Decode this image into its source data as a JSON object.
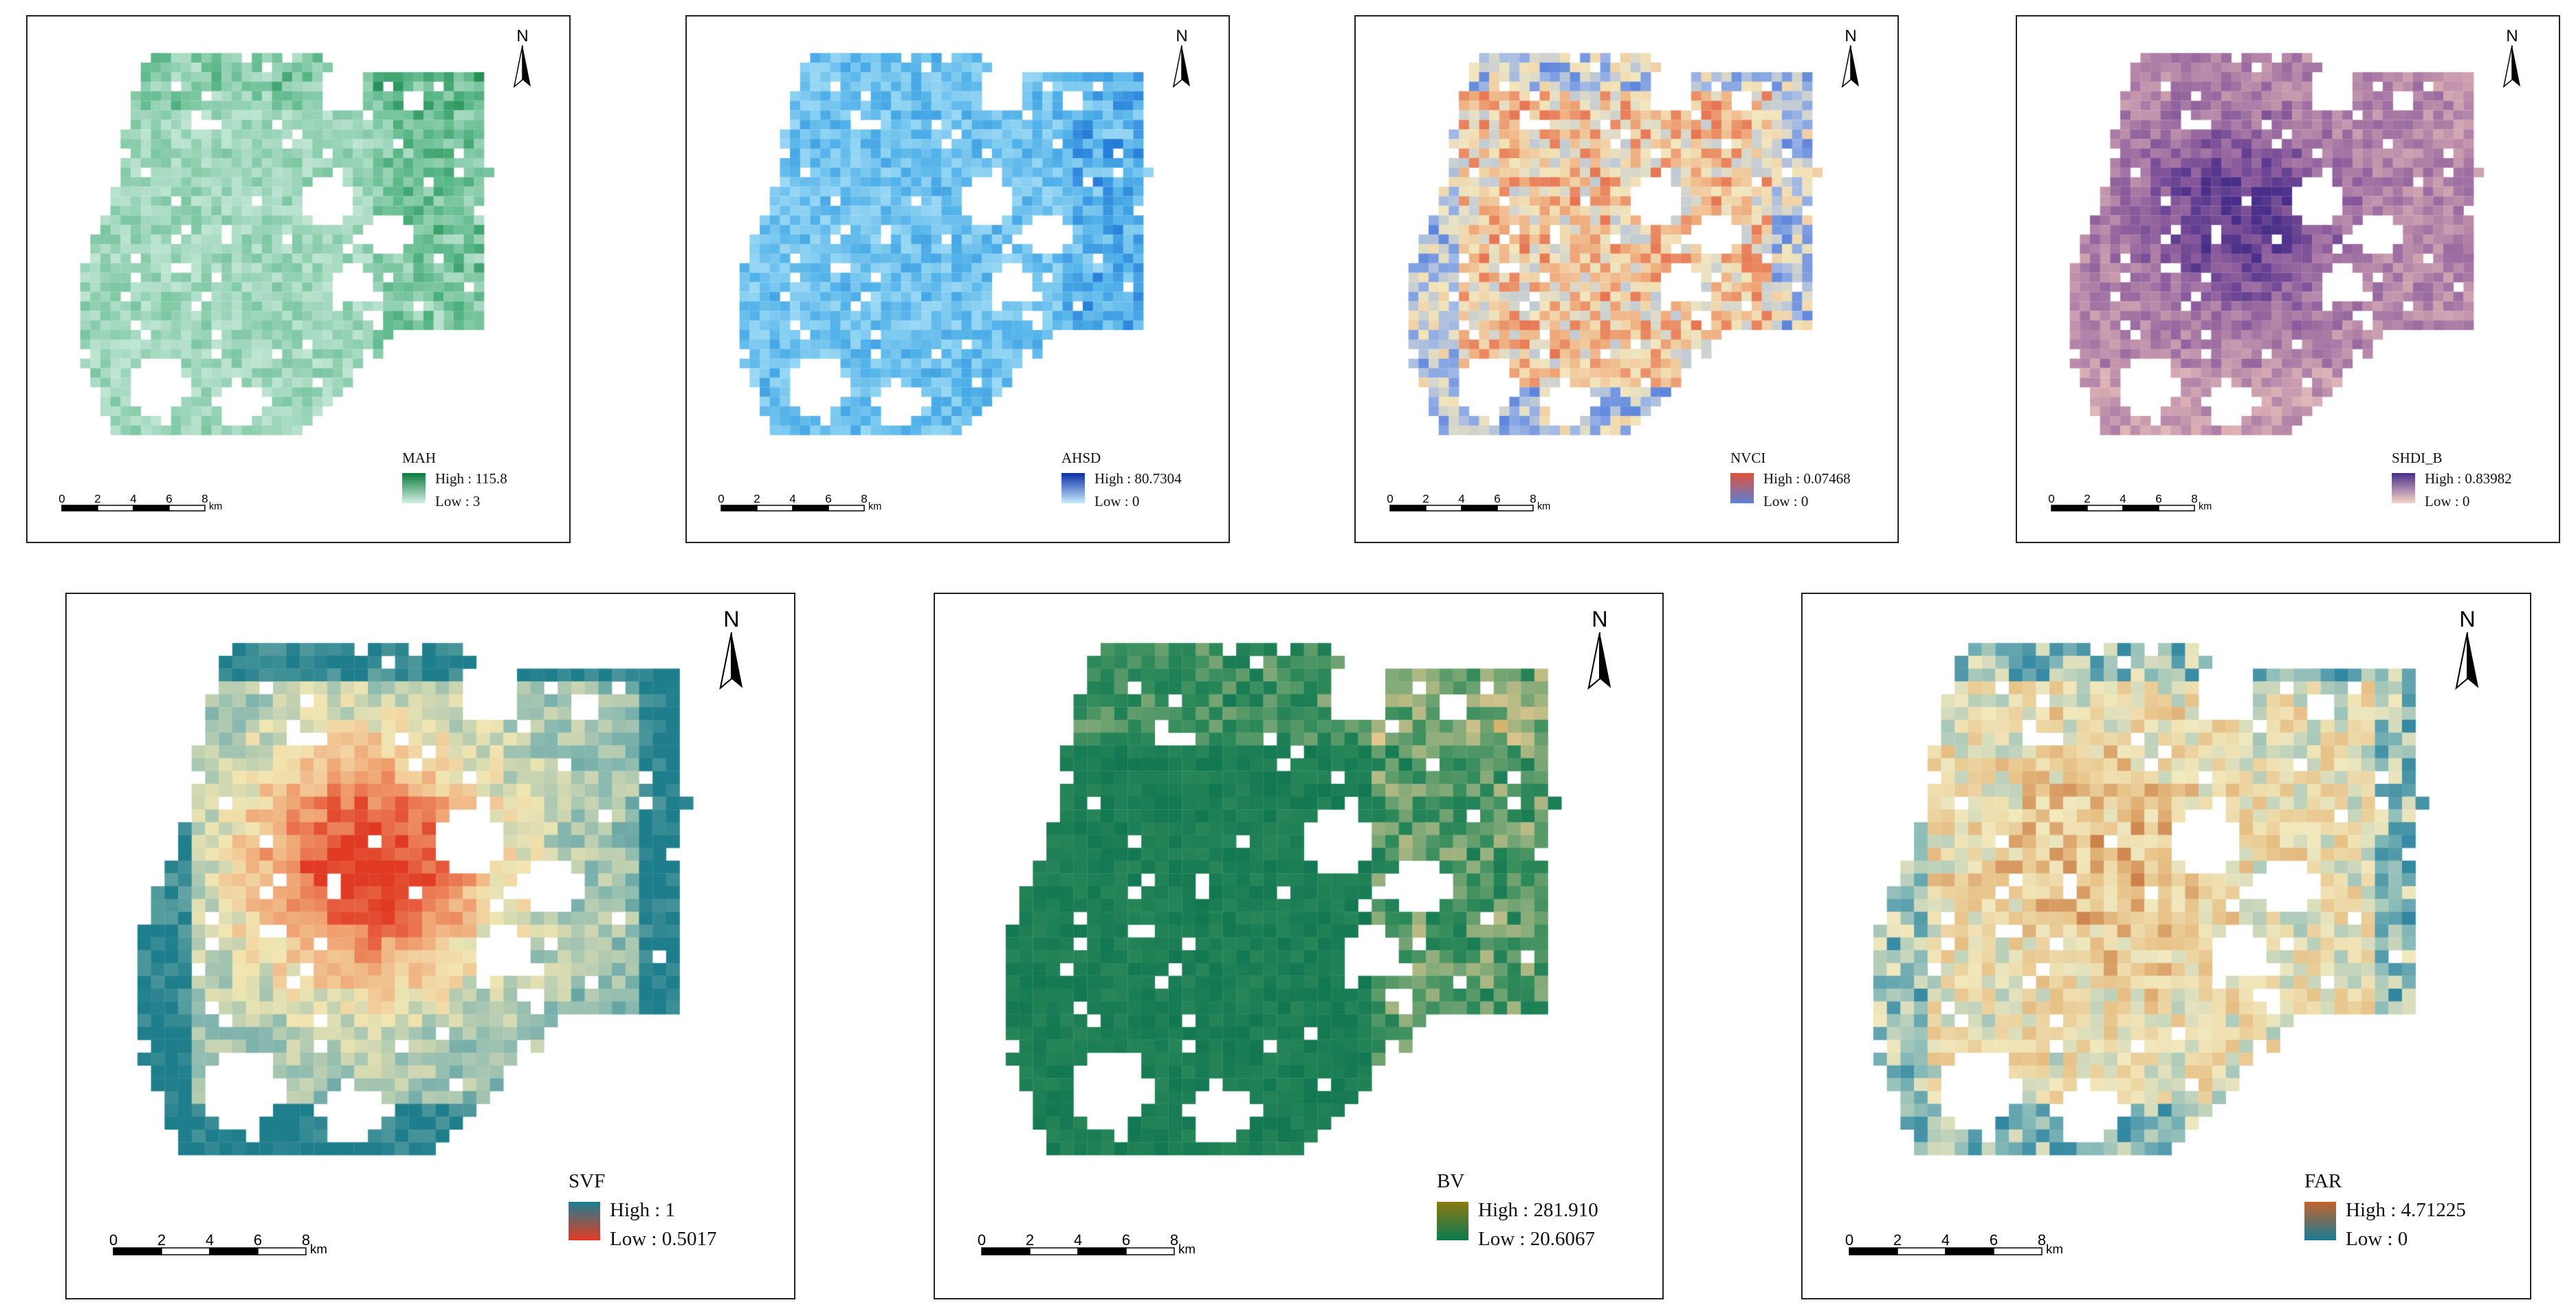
{
  "north_label": "N",
  "scale": {
    "ticks": [
      "0",
      "2",
      "4",
      "6",
      "8"
    ],
    "unit": "km"
  },
  "maps": [
    {
      "title": "MAH",
      "high_label": "High : 115.8",
      "low_label": "Low : 3",
      "high": 115.8,
      "low": 3,
      "color_low": "#d4f0e4",
      "color_high": "#0b7a3d",
      "ramp": [
        "#e0f4ec",
        "#a9dbc3",
        "#5cb88a",
        "#1a8a4e",
        "#0b6d35"
      ]
    },
    {
      "title": "AHSD",
      "high_label": "High : 80.7304",
      "low_label": "Low : 0",
      "high": 80.7304,
      "low": 0,
      "color_low": "#c7ecfb",
      "color_high": "#0a2ea8",
      "ramp": [
        "#cdeefc",
        "#8fd3f3",
        "#4fb0e8",
        "#1f74d6",
        "#0a1f9c"
      ]
    },
    {
      "title": "NVCI",
      "high_label": "High : 0.07468",
      "low_label": "Low : 0",
      "high": 0.07468,
      "low": 0,
      "color_low": "#5b7fd6",
      "color_high": "#e0513a",
      "ramp": [
        "#4c78d8",
        "#9db6e6",
        "#f2e6bd",
        "#efac7d",
        "#e04f36"
      ]
    },
    {
      "title": "SHDI_B",
      "high_label": "High : 0.83982",
      "low_label": "Low : 0",
      "high": 0.83982,
      "low": 0,
      "color_low": "#f5d6c8",
      "color_high": "#4b2e8c",
      "ramp": [
        "#f1dcc6",
        "#dcb0b4",
        "#b485a8",
        "#8a5a9c",
        "#4a2f8a"
      ]
    },
    {
      "title": "SVF",
      "high_label": "High : 1",
      "low_label": "Low : 0.5017",
      "high": 1,
      "low": 0.5017,
      "color_low": "#e43a24",
      "color_high": "#1b7f8f",
      "ramp": [
        "#1f7e8c",
        "#8ab9b0",
        "#f1e6b2",
        "#f0a070",
        "#e03a22"
      ]
    },
    {
      "title": "BV",
      "high_label": "High : 281.910",
      "low_label": "Low : 20.6067",
      "high": 281.91,
      "low": 20.6067,
      "color_low": "#0a7a4f",
      "color_high": "#8a7a10",
      "ramp": [
        "#0a7350",
        "#2f8a5a",
        "#8fae7c",
        "#e3c78d",
        "#c79a3b"
      ]
    },
    {
      "title": "FAR",
      "high_label": "High : 4.71225",
      "low_label": "Low : 0",
      "high": 4.71225,
      "low": 0,
      "color_low": "#1a7a95",
      "color_high": "#c1642c",
      "ramp": [
        "#17779a",
        "#84b8b8",
        "#f1e8bd",
        "#e7c187",
        "#c0642d"
      ]
    }
  ]
}
